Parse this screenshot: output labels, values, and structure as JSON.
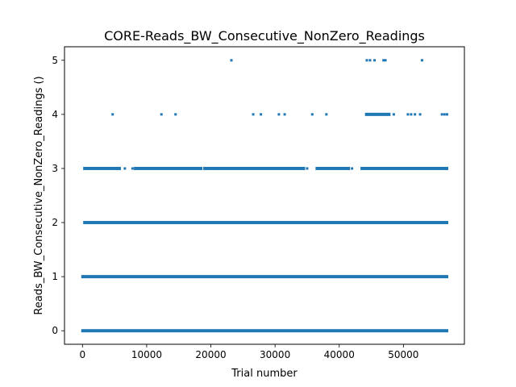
{
  "chart_data": {
    "type": "scatter",
    "title": "CORE-Reads_BW_Consecutive_NonZero_Readings",
    "xlabel": "Trial number",
    "ylabel": "Reads_BW_Consecutive_NonZero_Readings ()",
    "xlim": [
      -2800,
      59500
    ],
    "ylim": [
      -0.25,
      5.25
    ],
    "xticks": [
      0,
      10000,
      20000,
      30000,
      40000,
      50000
    ],
    "yticks": [
      0,
      1,
      2,
      3,
      4,
      5
    ],
    "grid": false,
    "marker_color": "#1f77b4",
    "series": [
      {
        "y": 0,
        "dense_ranges": [
          [
            0,
            56800
          ]
        ],
        "points": []
      },
      {
        "y": 1,
        "dense_ranges": [
          [
            0,
            56800
          ]
        ],
        "points": []
      },
      {
        "y": 2,
        "dense_ranges": [
          [
            300,
            18900
          ],
          [
            19100,
            56800
          ]
        ],
        "points": []
      },
      {
        "y": 3,
        "dense_ranges": [
          [
            300,
            5800
          ],
          [
            8200,
            18500
          ],
          [
            19000,
            34500
          ],
          [
            36500,
            41500
          ],
          [
            43500,
            56800
          ]
        ],
        "points": [
          6600,
          7800,
          20500,
          35000,
          42000
        ]
      },
      {
        "y": 4,
        "dense_ranges": [
          [
            44200,
            47800
          ]
        ],
        "points": [
          4700,
          12300,
          14500,
          26600,
          27800,
          30600,
          31500,
          35800,
          38000,
          48500,
          50700,
          51200,
          51800,
          52600,
          56000,
          56400,
          56800
        ]
      },
      {
        "y": 5,
        "points": [
          23200,
          44300,
          44800,
          45500,
          46900,
          47200,
          52900
        ]
      }
    ]
  }
}
